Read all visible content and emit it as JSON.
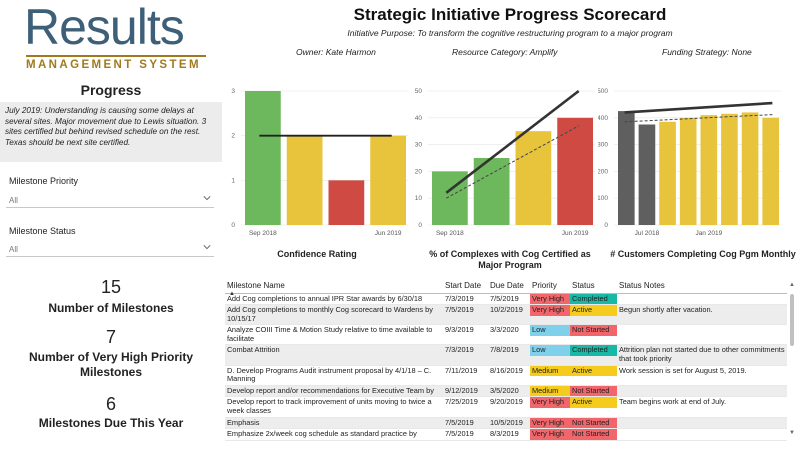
{
  "logo": {
    "word": "Results",
    "tagline": "MANAGEMENT SYSTEM"
  },
  "header": {
    "title": "Strategic Initiative Progress Scorecard",
    "purpose": "Initiative Purpose: To transform the cognitive restructuring program to a major program",
    "owner": "Owner: Kate Harmon",
    "resource": "Resource Category: Amplify",
    "funding": "Funding Strategy: None"
  },
  "progress": {
    "heading": "Progress",
    "note": "July 2019: Understanding is causing some delays at several sites. Major movement due to Lewis situation. 3 sites certified but behind revised schedule on the rest. Texas should be next site certified."
  },
  "filters": [
    {
      "label": "Milestone Priority",
      "value": "All"
    },
    {
      "label": "Milestone Status",
      "value": "All"
    }
  ],
  "kpis": [
    {
      "value": "15",
      "label": "Number of Milestones"
    },
    {
      "value": "7",
      "label": "Number of Very High Priority Milestones"
    },
    {
      "value": "6",
      "label": "Milestones Due This Year"
    }
  ],
  "colors": {
    "green": "#6db85c",
    "yellow": "#e8c33c",
    "red": "#cf4a42",
    "gray": "#5f5f5f",
    "chip_red": "#f0666a",
    "chip_yellow": "#f5cc1d",
    "chip_blue": "#7fd0ea",
    "chip_teal": "#17b9a6"
  },
  "chart_data": [
    {
      "type": "bar",
      "title": "Confidence Rating",
      "categories": [
        "Sep 2018",
        "",
        "",
        "Jun 2019"
      ],
      "tick_labels": [
        "Sep 2018",
        "Jun 2019"
      ],
      "values": [
        3,
        2,
        1,
        2
      ],
      "colors": [
        "green",
        "yellow",
        "red",
        "yellow"
      ],
      "target_line": 2,
      "ylim": [
        0,
        3
      ],
      "yticks": [
        "0",
        "1",
        "2",
        "3"
      ]
    },
    {
      "type": "bar",
      "title": "% of Complexes with Cog Certified as Major Program",
      "categories": [
        "Sep 2018",
        "",
        "",
        "Jun 2019"
      ],
      "tick_labels": [
        "Sep 2018",
        "Jun 2019"
      ],
      "values": [
        20,
        25,
        35,
        40
      ],
      "colors": [
        "green",
        "green",
        "yellow",
        "red"
      ],
      "target_line": [
        12,
        50
      ],
      "trend_line": [
        10,
        37
      ],
      "ylim": [
        0,
        50
      ],
      "yticks": [
        "0",
        "10",
        "20",
        "30",
        "40",
        "50"
      ]
    },
    {
      "type": "bar",
      "title": "# Customers Completing Cog Pgm Monthly",
      "categories": [
        "",
        "Jul 2018",
        "",
        "",
        "Jan 2019",
        "",
        "",
        ""
      ],
      "tick_labels": [
        "Jul 2018",
        "Jan 2019"
      ],
      "values": [
        425,
        375,
        385,
        400,
        410,
        415,
        420,
        400
      ],
      "colors": [
        "gray",
        "gray",
        "yellow",
        "yellow",
        "yellow",
        "yellow",
        "yellow",
        "yellow"
      ],
      "target_line": [
        420,
        455
      ],
      "trend_line": [
        385,
        412
      ],
      "ylim": [
        0,
        500
      ],
      "yticks": [
        "0",
        "100",
        "200",
        "300",
        "400",
        "500"
      ]
    }
  ],
  "table": {
    "columns": [
      "Milestone Name",
      "Start Date",
      "Due Date",
      "Priority",
      "Status",
      "Status Notes"
    ],
    "rows": [
      {
        "name": "Add Cog completions to annual IPR Star awards by 6/30/18",
        "start": "7/3/2019",
        "due": "7/5/2019",
        "priority": "Very High",
        "pcolor": "chip_red",
        "status": "Completed",
        "scolor": "chip_teal",
        "notes": ""
      },
      {
        "name": "Add Cog completions to monthly Cog scorecard to Wardens by 10/15/17",
        "start": "7/5/2019",
        "due": "10/2/2019",
        "priority": "Very High",
        "pcolor": "chip_red",
        "status": "Active",
        "scolor": "chip_yellow",
        "notes": "Begun shortly after vacation."
      },
      {
        "name": "Analyze COIII Time & Motion Study relative to time available to facilitate",
        "start": "9/3/2019",
        "due": "3/3/2020",
        "priority": "Low",
        "pcolor": "chip_blue",
        "status": "Not Started",
        "scolor": "chip_red",
        "notes": ""
      },
      {
        "name": "Combat Attrition",
        "start": "7/3/2019",
        "due": "7/8/2019",
        "priority": "Low",
        "pcolor": "chip_blue",
        "status": "Completed",
        "scolor": "chip_teal",
        "notes": "Attrition plan not started due to other commitments that took priority"
      },
      {
        "name": "D. Develop Programs Audit instrument proposal by 4/1/18 – C. Manning",
        "start": "7/11/2019",
        "due": "8/16/2019",
        "priority": "Medium",
        "pcolor": "chip_yellow",
        "status": "Active",
        "scolor": "chip_yellow",
        "notes": "Work session is set for August 5, 2019."
      },
      {
        "name": "Develop report and/or recommendations for Executive Team by",
        "start": "9/12/2019",
        "due": "3/5/2020",
        "priority": "Medium",
        "pcolor": "chip_yellow",
        "status": "Not Started",
        "scolor": "chip_red",
        "notes": ""
      },
      {
        "name": "Develop report to track improvement of units moving to twice a week classes",
        "start": "7/25/2019",
        "due": "9/20/2019",
        "priority": "Very High",
        "pcolor": "chip_red",
        "status": "Active",
        "scolor": "chip_yellow",
        "notes": "Team begins work at end of July."
      },
      {
        "name": "Emphasis",
        "start": "7/5/2019",
        "due": "10/5/2019",
        "priority": "Very High",
        "pcolor": "chip_red",
        "status": "Not Started",
        "scolor": "chip_red",
        "notes": ""
      },
      {
        "name": "Emphasize 2x/week cog schedule as standard practice by",
        "start": "7/5/2019",
        "due": "8/3/2019",
        "priority": "Very High",
        "pcolor": "chip_red",
        "status": "Not Started",
        "scolor": "chip_red",
        "notes": ""
      }
    ]
  }
}
